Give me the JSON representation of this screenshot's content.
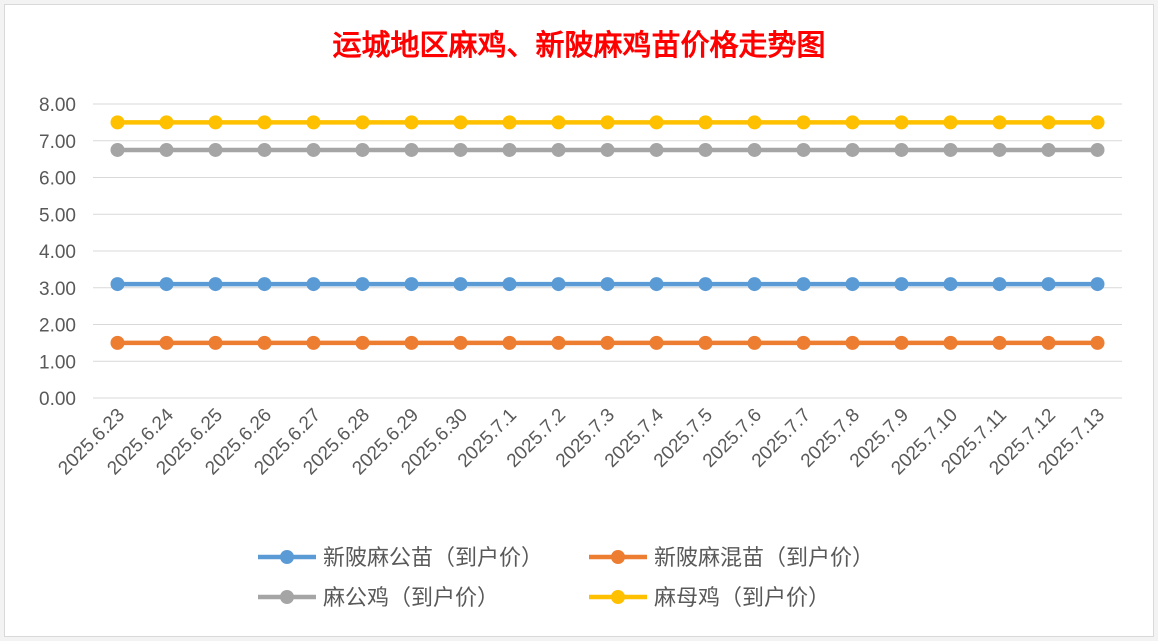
{
  "chart_data": {
    "type": "line",
    "title": "运城地区麻鸡、新陂麻鸡苗价格走势图",
    "xlabel": "",
    "ylabel": "",
    "ylim": [
      0,
      8
    ],
    "y_ticks": [
      "0.00",
      "1.00",
      "2.00",
      "3.00",
      "4.00",
      "5.00",
      "6.00",
      "7.00",
      "8.00"
    ],
    "grid": true,
    "legend_position": "bottom",
    "categories": [
      "2025.6.23",
      "2025.6.24",
      "2025.6.25",
      "2025.6.26",
      "2025.6.27",
      "2025.6.28",
      "2025.6.29",
      "2025.6.30",
      "2025.7.1",
      "2025.7.2",
      "2025.7.3",
      "2025.7.4",
      "2025.7.5",
      "2025.7.6",
      "2025.7.7",
      "2025.7.8",
      "2025.7.9",
      "2025.7.10",
      "2025.7.11",
      "2025.7.12",
      "2025.7.13"
    ],
    "series": [
      {
        "name": "新陂麻公苗（到户价）",
        "color": "#5b9bd5",
        "values": [
          3.1,
          3.1,
          3.1,
          3.1,
          3.1,
          3.1,
          3.1,
          3.1,
          3.1,
          3.1,
          3.1,
          3.1,
          3.1,
          3.1,
          3.1,
          3.1,
          3.1,
          3.1,
          3.1,
          3.1,
          3.1
        ]
      },
      {
        "name": "新陂麻混苗（到户价）",
        "color": "#ed7d31",
        "values": [
          1.5,
          1.5,
          1.5,
          1.5,
          1.5,
          1.5,
          1.5,
          1.5,
          1.5,
          1.5,
          1.5,
          1.5,
          1.5,
          1.5,
          1.5,
          1.5,
          1.5,
          1.5,
          1.5,
          1.5,
          1.5
        ]
      },
      {
        "name": "麻公鸡（到户价）",
        "color": "#a5a5a5",
        "values": [
          6.75,
          6.75,
          6.75,
          6.75,
          6.75,
          6.75,
          6.75,
          6.75,
          6.75,
          6.75,
          6.75,
          6.75,
          6.75,
          6.75,
          6.75,
          6.75,
          6.75,
          6.75,
          6.75,
          6.75,
          6.75
        ]
      },
      {
        "name": "麻母鸡（到户价）",
        "color": "#ffc000",
        "values": [
          7.5,
          7.5,
          7.5,
          7.5,
          7.5,
          7.5,
          7.5,
          7.5,
          7.5,
          7.5,
          7.5,
          7.5,
          7.5,
          7.5,
          7.5,
          7.5,
          7.5,
          7.5,
          7.5,
          7.5,
          7.5
        ]
      }
    ]
  }
}
